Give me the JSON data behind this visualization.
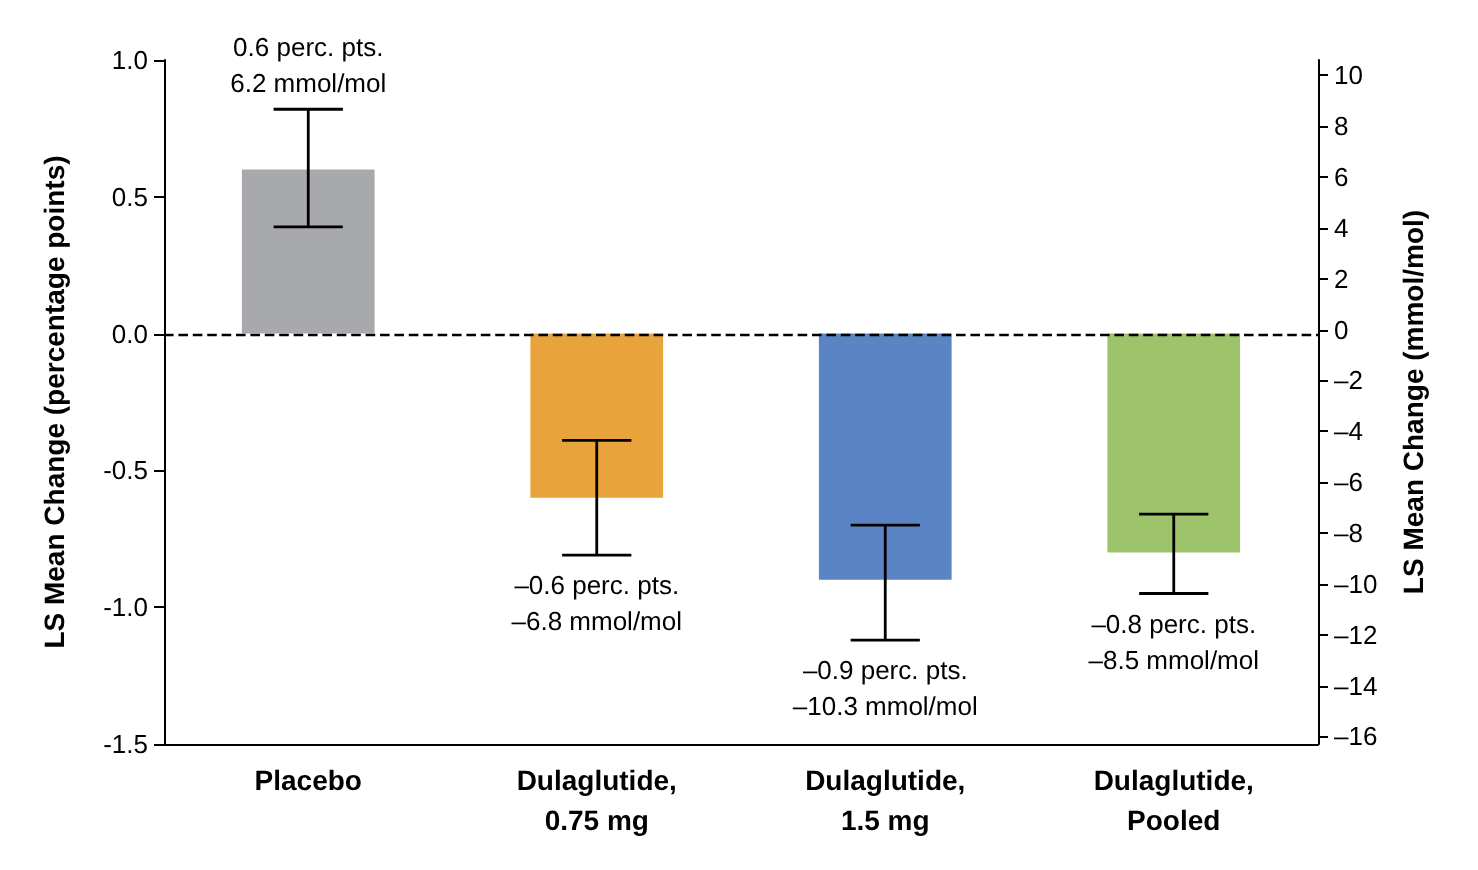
{
  "chart_data": {
    "type": "bar",
    "categories": [
      "Placebo",
      "Dulaglutide,\n0.75 mg",
      "Dulaglutide,\n1.5 mg",
      "Dulaglutide,\nPooled"
    ],
    "values": [
      0.6,
      -0.6,
      -0.9,
      -0.8
    ],
    "colors": [
      "#a7a9ac",
      "#e8a33d",
      "#5b84c4",
      "#9dc46a"
    ],
    "errors": [
      [
        0.39,
        0.82
      ],
      [
        -0.81,
        -0.39
      ],
      [
        -1.12,
        -0.7
      ],
      [
        -0.95,
        -0.66
      ]
    ],
    "value_labels": [
      "0.6 perc. pts.\n6.2 mmol/mol",
      "–0.6 perc. pts.\n–6.8 mmol/mol",
      "–0.9 perc. pts.\n–10.3 mmol/mol",
      "–0.8 perc. pts.\n–8.5 mmol/mol"
    ],
    "ylabel": "LS Mean Change (percentage points)",
    "y2label": "LS Mean Change (mmol/mol)",
    "ylim": [
      -1.5,
      1.0
    ],
    "yticks": [
      {
        "value": -1.5,
        "label": "-1.5"
      },
      {
        "value": -1.0,
        "label": "-1.0"
      },
      {
        "value": -0.5,
        "label": "-0.5"
      },
      {
        "value": 0,
        "label": "0.0"
      },
      {
        "value": 0.5,
        "label": "0.5"
      },
      {
        "value": 1.0,
        "label": "1.0"
      }
    ],
    "y2lim": [
      -16.3,
      10.6
    ],
    "y2ticks": [
      {
        "value": -16,
        "label": "–16"
      },
      {
        "value": -14,
        "label": "–14"
      },
      {
        "value": -12,
        "label": "–12"
      },
      {
        "value": -10,
        "label": "–10"
      },
      {
        "value": -8,
        "label": "–8"
      },
      {
        "value": -6,
        "label": "–6"
      },
      {
        "value": -4,
        "label": "–4"
      },
      {
        "value": -2,
        "label": "–2"
      },
      0,
      2,
      4,
      6,
      8,
      10
    ],
    "ref_lines": [
      {
        "axis": "y",
        "value": 0,
        "color": "#000000",
        "line_style": "dashed"
      }
    ],
    "grid": false
  }
}
